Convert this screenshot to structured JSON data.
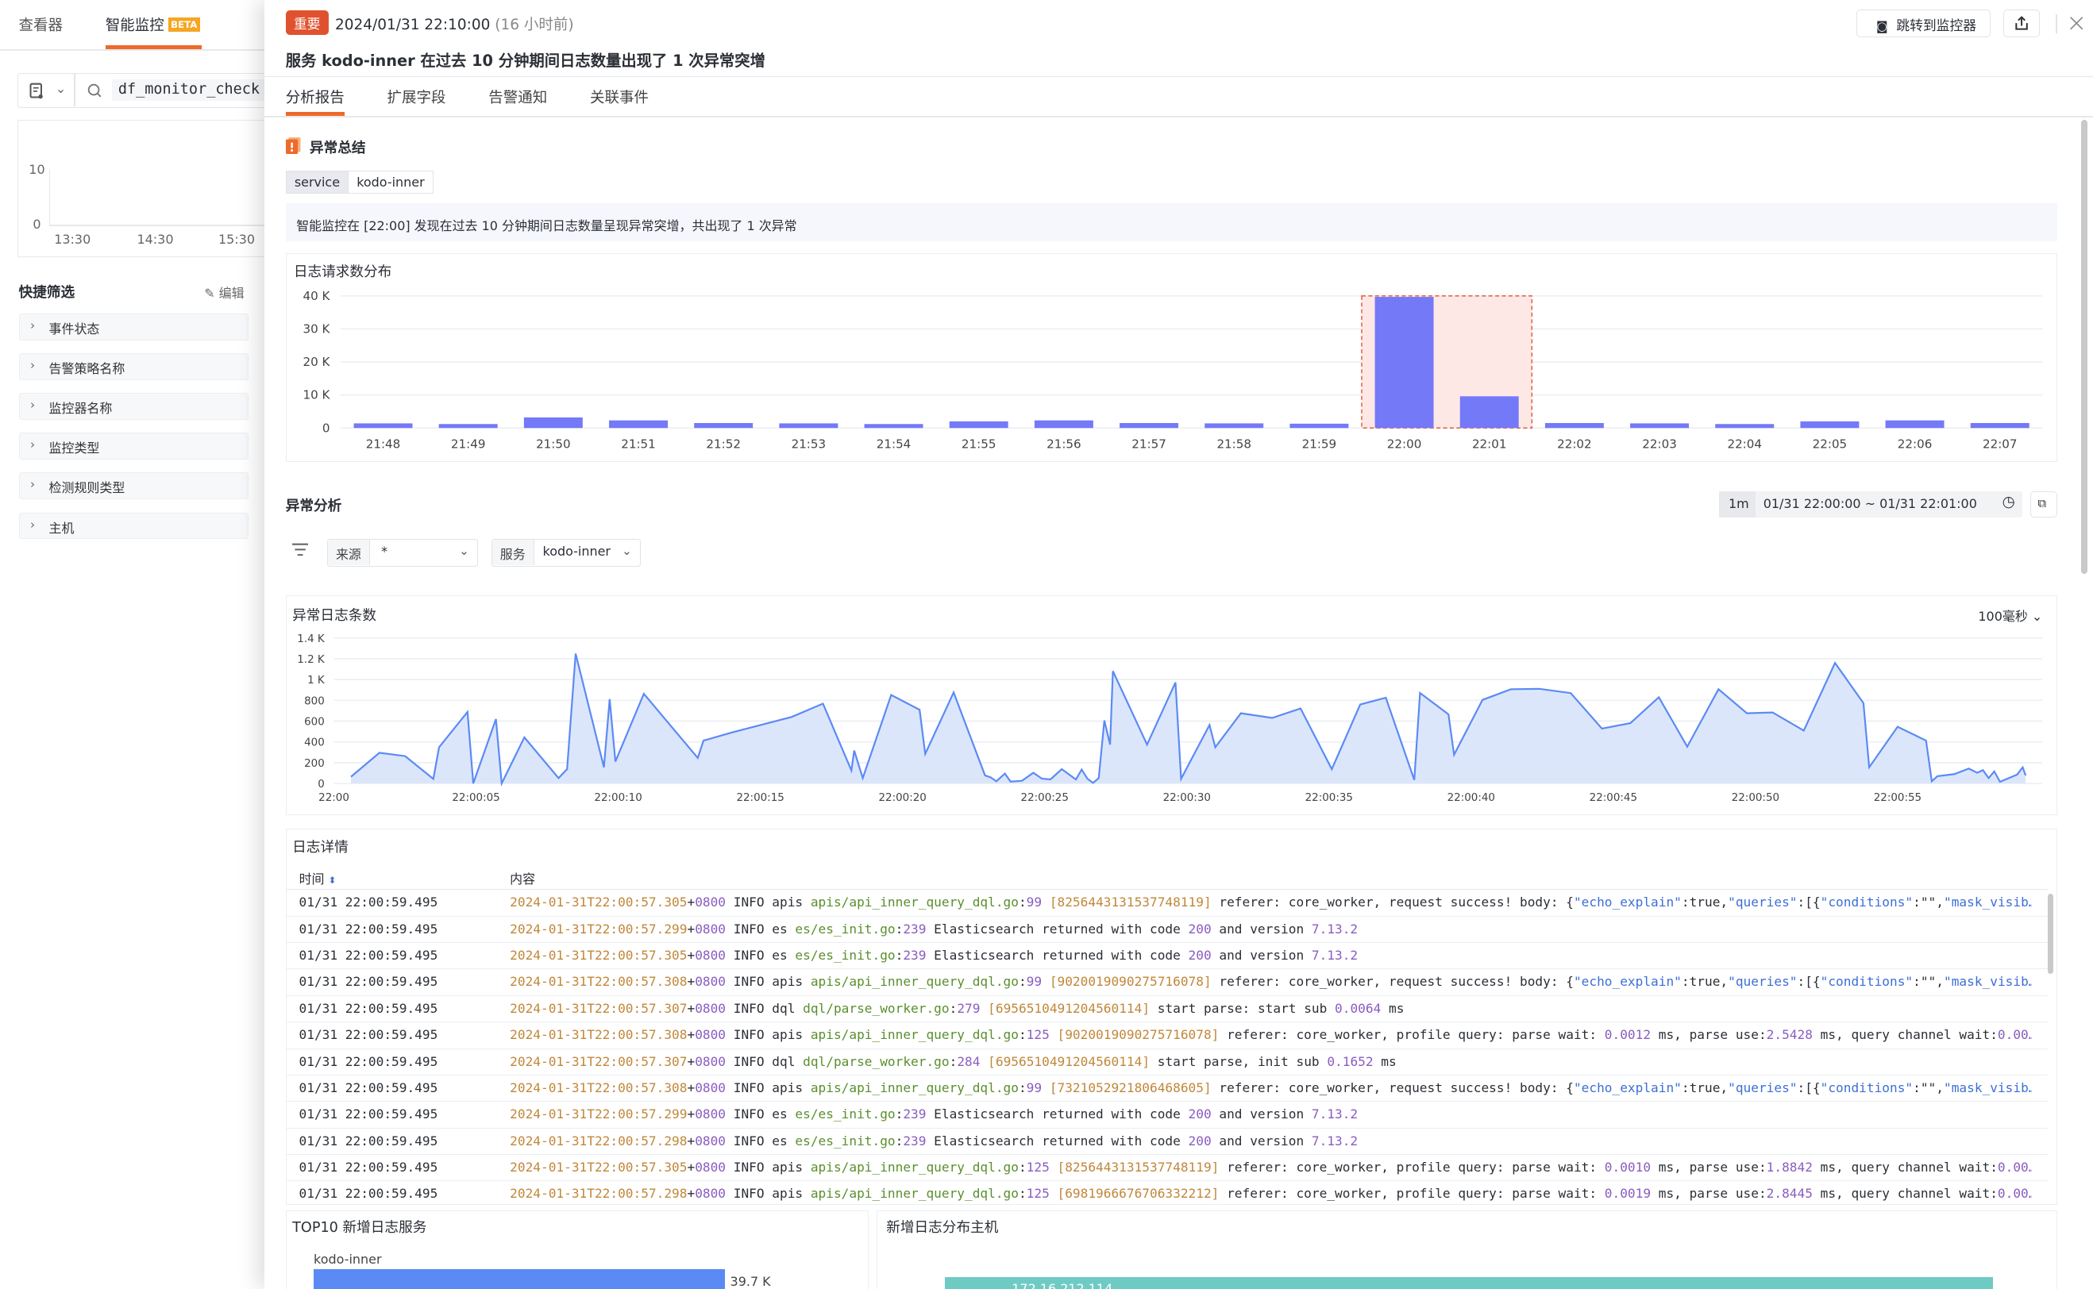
{
  "left": {
    "tabs": [
      "查看器",
      "智能监控"
    ],
    "beta": "BETA",
    "search_value": "df_monitor_check",
    "mini_chart": {
      "y_ticks": [
        "10",
        "0"
      ],
      "x_ticks": [
        "13:30",
        "14:30",
        "15:30"
      ]
    },
    "quick_filter_title": "快捷筛选",
    "edit_label": "编辑",
    "filters": [
      "事件状态",
      "告警策略名称",
      "监控器名称",
      "监控类型",
      "检测规则类型",
      "主机"
    ]
  },
  "header": {
    "badge": "重要",
    "datetime": "2024/01/31 22:10:00",
    "relative": "(16 小时前)",
    "title": "服务 kodo-inner 在过去 10 分钟期间日志数量出现了 1 次异常突增",
    "jump_label": "跳转到监控器"
  },
  "tabs": [
    "分析报告",
    "扩展字段",
    "告警通知",
    "关联事件"
  ],
  "summary": {
    "title": "异常总结",
    "tag_key": "service",
    "tag_value": "kodo-inner",
    "message": "智能监控在 [22:00] 发现在过去 10 分钟期间日志数量呈现异常突增，共出现了 1 次异常"
  },
  "analysis": {
    "title": "异常分析",
    "interval": "1m",
    "time_range": "01/31 22:00:00 ~ 01/31 22:01:00",
    "source_label": "来源",
    "source_value": "*",
    "service_label": "服务",
    "service_value": "kodo-inner"
  },
  "chart_data": [
    {
      "type": "bar",
      "title": "日志请求数分布",
      "categories": [
        "21:48",
        "21:49",
        "21:50",
        "21:51",
        "21:52",
        "21:53",
        "21:54",
        "21:55",
        "21:56",
        "21:57",
        "21:58",
        "21:59",
        "22:00",
        "22:01",
        "22:02",
        "22:03",
        "22:04",
        "22:05",
        "22:06",
        "22:07"
      ],
      "values": [
        1400,
        1200,
        3200,
        2300,
        1500,
        1400,
        1200,
        2000,
        2300,
        1500,
        1400,
        1300,
        39700,
        9600,
        1500,
        1400,
        1200,
        2000,
        2300,
        1500
      ],
      "y_ticks": [
        "0",
        "10 K",
        "20 K",
        "30 K",
        "40 K"
      ],
      "ylim": [
        0,
        40000
      ],
      "highlight": [
        "22:00",
        "22:01"
      ],
      "bar_color": "#7479f7",
      "highlight_color": "#fde8e6"
    },
    {
      "type": "area",
      "title": "异常日志条数",
      "interval_label": "100毫秒",
      "xlabel": "",
      "ylabel": "",
      "ylim": [
        0,
        1400
      ],
      "y_ticks": [
        "0",
        "200",
        "400",
        "600",
        "800",
        "1 K",
        "1.2 K",
        "1.4 K"
      ],
      "x_ticks": [
        "22:00",
        "22:00:05",
        "22:00:10",
        "22:00:15",
        "22:00:20",
        "22:00:25",
        "22:00:30",
        "22:00:35",
        "22:00:40",
        "22:00:45",
        "22:00:50",
        "22:00:55"
      ],
      "x_seconds": [
        0.6,
        1.6,
        2.5,
        3.5,
        3.7,
        4.7,
        4.9,
        5.7,
        5.9,
        6.7,
        7.9,
        8.2,
        8.5,
        9.5,
        9.7,
        9.9,
        10.9,
        12.8,
        13.0,
        14.0,
        16.1,
        17.2,
        18.2,
        18.3,
        18.6,
        19.6,
        20.6,
        20.8,
        21.8,
        22.9,
        23.1,
        23.3,
        23.6,
        23.8,
        24.2,
        24.6,
        24.9,
        25.2,
        25.6,
        26.1,
        26.3,
        26.5,
        26.7,
        26.9,
        27.1,
        27.3,
        27.4,
        28.6,
        29.6,
        29.8,
        30.8,
        31.0,
        31.9,
        33.0,
        34.0,
        35.1,
        36.1,
        37.0,
        38.0,
        38.2,
        39.2,
        39.4,
        40.4,
        41.4,
        42.4,
        43.5,
        44.6,
        45.6,
        46.6,
        47.6,
        48.7,
        49.7,
        50.6,
        51.7,
        52.8,
        53.8,
        54.0,
        55.0,
        56.0,
        56.2,
        56.4,
        57.0,
        57.5,
        57.8,
        58.0,
        58.2,
        58.4,
        58.6,
        59.2,
        59.4,
        59.5
      ],
      "values": [
        64,
        296,
        263,
        44,
        348,
        688,
        0,
        619,
        0,
        443,
        52,
        137,
        1250,
        155,
        812,
        211,
        863,
        245,
        412,
        490,
        639,
        768,
        124,
        317,
        52,
        851,
        709,
        284,
        876,
        77,
        59,
        21,
        95,
        18,
        26,
        103,
        46,
        39,
        137,
        39,
        134,
        46,
        5,
        52,
        606,
        374,
        1082,
        374,
        972,
        44,
        562,
        348,
        675,
        631,
        722,
        137,
        760,
        825,
        34,
        871,
        665,
        276,
        804,
        907,
        910,
        869,
        528,
        580,
        830,
        353,
        907,
        675,
        683,
        508,
        1160,
        773,
        155,
        546,
        412,
        21,
        70,
        90,
        142,
        103,
        129,
        52,
        116,
        15,
        85,
        155,
        77
      ],
      "line_color": "#5b8af5",
      "fill_color": "#dce6fb"
    }
  ],
  "logs": {
    "title": "日志详情",
    "col_time": "时间",
    "col_content": "内容",
    "rows": [
      {
        "time": "01/31 22:00:59.495",
        "segs": [
          [
            "2024-01-31T22:00:57.305",
            "t"
          ],
          [
            "+",
            ""
          ],
          [
            "0800",
            "n"
          ],
          [
            " INFO apis ",
            ""
          ],
          [
            "apis/api_inner_query_dql.go",
            "g"
          ],
          [
            ":",
            ""
          ],
          [
            "99",
            "n"
          ],
          [
            " ",
            ""
          ],
          [
            "[8256443131537748119]",
            "t"
          ],
          [
            " referer: core_worker, request success! body: {",
            ""
          ],
          [
            "\"echo_explain\"",
            "k"
          ],
          [
            ":true,",
            ""
          ],
          [
            "\"queries\"",
            "k"
          ],
          [
            ":[{",
            ""
          ],
          [
            "\"conditions\"",
            "k"
          ],
          [
            ":\"\",",
            ""
          ],
          [
            "\"mask_visib…",
            "k"
          ]
        ]
      },
      {
        "time": "01/31 22:00:59.495",
        "segs": [
          [
            "2024-01-31T22:00:57.299",
            "t"
          ],
          [
            "+",
            ""
          ],
          [
            "0800",
            "n"
          ],
          [
            " INFO es ",
            ""
          ],
          [
            "es/es_init.go",
            "g"
          ],
          [
            ":",
            ""
          ],
          [
            "239",
            "n"
          ],
          [
            " Elasticsearch returned with code ",
            ""
          ],
          [
            "200",
            "n"
          ],
          [
            " and version ",
            ""
          ],
          [
            "7.13.2",
            "n"
          ]
        ]
      },
      {
        "time": "01/31 22:00:59.495",
        "segs": [
          [
            "2024-01-31T22:00:57.305",
            "t"
          ],
          [
            "+",
            ""
          ],
          [
            "0800",
            "n"
          ],
          [
            " INFO es ",
            ""
          ],
          [
            "es/es_init.go",
            "g"
          ],
          [
            ":",
            ""
          ],
          [
            "239",
            "n"
          ],
          [
            " Elasticsearch returned with code ",
            ""
          ],
          [
            "200",
            "n"
          ],
          [
            " and version ",
            ""
          ],
          [
            "7.13.2",
            "n"
          ]
        ]
      },
      {
        "time": "01/31 22:00:59.495",
        "segs": [
          [
            "2024-01-31T22:00:57.308",
            "t"
          ],
          [
            "+",
            ""
          ],
          [
            "0800",
            "n"
          ],
          [
            " INFO apis ",
            ""
          ],
          [
            "apis/api_inner_query_dql.go",
            "g"
          ],
          [
            ":",
            ""
          ],
          [
            "99",
            "n"
          ],
          [
            " ",
            ""
          ],
          [
            "[9020019090275716078]",
            "t"
          ],
          [
            " referer: core_worker, request success! body: {",
            ""
          ],
          [
            "\"echo_explain\"",
            "k"
          ],
          [
            ":true,",
            ""
          ],
          [
            "\"queries\"",
            "k"
          ],
          [
            ":[{",
            ""
          ],
          [
            "\"conditions\"",
            "k"
          ],
          [
            ":\"\",",
            ""
          ],
          [
            "\"mask_visib…",
            "k"
          ]
        ]
      },
      {
        "time": "01/31 22:00:59.495",
        "segs": [
          [
            "2024-01-31T22:00:57.307",
            "t"
          ],
          [
            "+",
            ""
          ],
          [
            "0800",
            "n"
          ],
          [
            " INFO dql ",
            ""
          ],
          [
            "dql/parse_worker.go",
            "g"
          ],
          [
            ":",
            ""
          ],
          [
            "279",
            "n"
          ],
          [
            " ",
            ""
          ],
          [
            "[6956510491204560114]",
            "t"
          ],
          [
            " start parse: start sub ",
            ""
          ],
          [
            "0.0064",
            "n"
          ],
          [
            " ms",
            ""
          ]
        ]
      },
      {
        "time": "01/31 22:00:59.495",
        "segs": [
          [
            "2024-01-31T22:00:57.308",
            "t"
          ],
          [
            "+",
            ""
          ],
          [
            "0800",
            "n"
          ],
          [
            " INFO apis ",
            ""
          ],
          [
            "apis/api_inner_query_dql.go",
            "g"
          ],
          [
            ":",
            ""
          ],
          [
            "125",
            "n"
          ],
          [
            " ",
            ""
          ],
          [
            "[9020019090275716078]",
            "t"
          ],
          [
            " referer: core_worker, profile query: parse wait: ",
            ""
          ],
          [
            "0.0012",
            "n"
          ],
          [
            " ms, parse use:",
            ""
          ],
          [
            "2.5428",
            "n"
          ],
          [
            " ms, query channel wait:",
            ""
          ],
          [
            "0.00…",
            "n"
          ]
        ]
      },
      {
        "time": "01/31 22:00:59.495",
        "segs": [
          [
            "2024-01-31T22:00:57.307",
            "t"
          ],
          [
            "+",
            ""
          ],
          [
            "0800",
            "n"
          ],
          [
            " INFO dql ",
            ""
          ],
          [
            "dql/parse_worker.go",
            "g"
          ],
          [
            ":",
            ""
          ],
          [
            "284",
            "n"
          ],
          [
            " ",
            ""
          ],
          [
            "[6956510491204560114]",
            "t"
          ],
          [
            " start parse, init sub ",
            ""
          ],
          [
            "0.1652",
            "n"
          ],
          [
            " ms",
            ""
          ]
        ]
      },
      {
        "time": "01/31 22:00:59.495",
        "segs": [
          [
            "2024-01-31T22:00:57.308",
            "t"
          ],
          [
            "+",
            ""
          ],
          [
            "0800",
            "n"
          ],
          [
            " INFO apis ",
            ""
          ],
          [
            "apis/api_inner_query_dql.go",
            "g"
          ],
          [
            ":",
            ""
          ],
          [
            "99",
            "n"
          ],
          [
            " ",
            ""
          ],
          [
            "[7321052921806468605]",
            "t"
          ],
          [
            " referer: core_worker, request success! body: {",
            ""
          ],
          [
            "\"echo_explain\"",
            "k"
          ],
          [
            ":true,",
            ""
          ],
          [
            "\"queries\"",
            "k"
          ],
          [
            ":[{",
            ""
          ],
          [
            "\"conditions\"",
            "k"
          ],
          [
            ":\"\",",
            ""
          ],
          [
            "\"mask_visib…",
            "k"
          ]
        ]
      },
      {
        "time": "01/31 22:00:59.495",
        "segs": [
          [
            "2024-01-31T22:00:57.299",
            "t"
          ],
          [
            "+",
            ""
          ],
          [
            "0800",
            "n"
          ],
          [
            " INFO es ",
            ""
          ],
          [
            "es/es_init.go",
            "g"
          ],
          [
            ":",
            ""
          ],
          [
            "239",
            "n"
          ],
          [
            " Elasticsearch returned with code ",
            ""
          ],
          [
            "200",
            "n"
          ],
          [
            " and version ",
            ""
          ],
          [
            "7.13.2",
            "n"
          ]
        ]
      },
      {
        "time": "01/31 22:00:59.495",
        "segs": [
          [
            "2024-01-31T22:00:57.298",
            "t"
          ],
          [
            "+",
            ""
          ],
          [
            "0800",
            "n"
          ],
          [
            " INFO es ",
            ""
          ],
          [
            "es/es_init.go",
            "g"
          ],
          [
            ":",
            ""
          ],
          [
            "239",
            "n"
          ],
          [
            " Elasticsearch returned with code ",
            ""
          ],
          [
            "200",
            "n"
          ],
          [
            " and version ",
            ""
          ],
          [
            "7.13.2",
            "n"
          ]
        ]
      },
      {
        "time": "01/31 22:00:59.495",
        "segs": [
          [
            "2024-01-31T22:00:57.305",
            "t"
          ],
          [
            "+",
            ""
          ],
          [
            "0800",
            "n"
          ],
          [
            " INFO apis ",
            ""
          ],
          [
            "apis/api_inner_query_dql.go",
            "g"
          ],
          [
            ":",
            ""
          ],
          [
            "125",
            "n"
          ],
          [
            " ",
            ""
          ],
          [
            "[8256443131537748119]",
            "t"
          ],
          [
            " referer: core_worker, profile query: parse wait: ",
            ""
          ],
          [
            "0.0010",
            "n"
          ],
          [
            " ms, parse use:",
            ""
          ],
          [
            "1.8842",
            "n"
          ],
          [
            " ms, query channel wait:",
            ""
          ],
          [
            "0.00…",
            "n"
          ]
        ]
      },
      {
        "time": "01/31 22:00:59.495",
        "segs": [
          [
            "2024-01-31T22:00:57.298",
            "t"
          ],
          [
            "+",
            ""
          ],
          [
            "0800",
            "n"
          ],
          [
            " INFO apis ",
            ""
          ],
          [
            "apis/api_inner_query_dql.go",
            "g"
          ],
          [
            ":",
            ""
          ],
          [
            "125",
            "n"
          ],
          [
            " ",
            ""
          ],
          [
            "[6981966676706332212]",
            "t"
          ],
          [
            " referer: core_worker, profile query: parse wait: ",
            ""
          ],
          [
            "0.0019",
            "n"
          ],
          [
            " ms, parse use:",
            ""
          ],
          [
            "2.8445",
            "n"
          ],
          [
            " ms, query channel wait:",
            ""
          ],
          [
            "0.00…",
            "n"
          ]
        ]
      }
    ]
  },
  "top10": {
    "title": "TOP10 新增日志服务",
    "items": [
      {
        "name": "kodo-inner",
        "value_label": "39.7 K",
        "value": 39700
      }
    ],
    "bar_color": "#5b8af5"
  },
  "hosts": {
    "title": "新增日志分布主机",
    "items": [
      {
        "label": "172.16.212.114"
      }
    ],
    "bar_color": "#6ecbc4"
  }
}
